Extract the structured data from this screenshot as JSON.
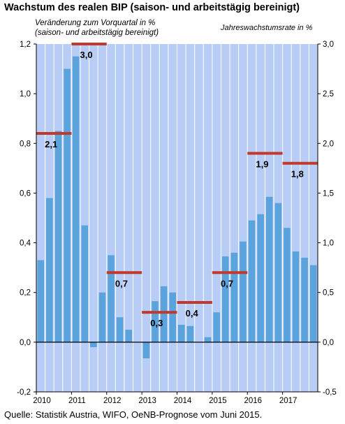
{
  "chart_data": {
    "type": "bar",
    "title": "Wachstum des realen BIP (saison- und arbeitstägig bereinigt)",
    "ylabel_left": [
      "Veränderung zum Vorquartal in %",
      "(saison- und arbeitstägig bereinigt)"
    ],
    "ylabel_right": "Jahreswachstumsrate in %",
    "source": "Quelle: Statistik Austria, WIFO, OeNB-Prognose vom Juni 2015.",
    "ylim_left": [
      -0.2,
      1.2
    ],
    "ylim_right": [
      -0.5,
      3.0
    ],
    "yticks_left": [
      "-0,2",
      "0,0",
      "0,2",
      "0,4",
      "0,6",
      "0,8",
      "1,0",
      "1,2"
    ],
    "yticks_right": [
      "-0,5",
      "0,0",
      "0,5",
      "1,0",
      "1,5",
      "2,0",
      "2,5",
      "3,0"
    ],
    "x_years": [
      "2010",
      "2011",
      "2012",
      "2013",
      "2014",
      "2015",
      "2016",
      "2017"
    ],
    "quarterly_growth": [
      0.33,
      0.58,
      0.85,
      1.1,
      1.15,
      0.47,
      -0.02,
      0.2,
      0.35,
      0.1,
      0.05,
      0.0,
      -0.065,
      0.165,
      0.225,
      0.2,
      0.07,
      0.065,
      0.0,
      0.02,
      0.12,
      0.345,
      0.36,
      0.405,
      0.49,
      0.515,
      0.585,
      0.56,
      0.46,
      0.365,
      0.34,
      0.31
    ],
    "annual_growth": [
      {
        "year": "2010",
        "value": 2.1,
        "label": "2,1"
      },
      {
        "year": "2011",
        "value": 3.0,
        "label": "3,0"
      },
      {
        "year": "2012",
        "value": 0.7,
        "label": "0,7"
      },
      {
        "year": "2013",
        "value": 0.3,
        "label": "0,3"
      },
      {
        "year": "2014",
        "value": 0.4,
        "label": "0,4"
      },
      {
        "year": "2015",
        "value": 0.7,
        "label": "0,7"
      },
      {
        "year": "2016",
        "value": 1.9,
        "label": "1,9"
      },
      {
        "year": "2017",
        "value": 1.8,
        "label": "1,8"
      }
    ],
    "grid": "vertical",
    "colors": {
      "plot_background": "#b7cdf5",
      "bars": "#5aa3dc",
      "annual_lines": "#c0392b",
      "gridlines": "#ffffff"
    }
  }
}
